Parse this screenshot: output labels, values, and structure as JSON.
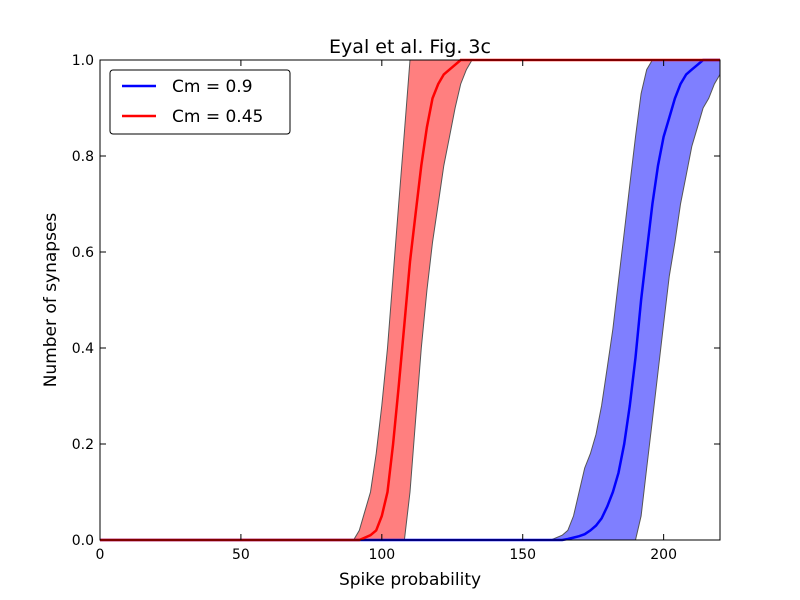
{
  "chart_data": {
    "type": "line",
    "title": "Eyal et al. Fig. 3c",
    "xlabel": "Spike probability",
    "ylabel": "Number of synapses",
    "xlim": [
      0,
      220
    ],
    "ylim": [
      0,
      1.0
    ],
    "xticks": [
      0,
      50,
      100,
      150,
      200
    ],
    "xtick_labels": [
      "0",
      "50",
      "100",
      "150",
      "200"
    ],
    "yticks": [
      0.0,
      0.2,
      0.4,
      0.6,
      0.8,
      1.0
    ],
    "ytick_labels": [
      "0.0",
      "0.2",
      "0.4",
      "0.6",
      "0.8",
      "1.0"
    ],
    "grid": false,
    "legend_position": "top-left",
    "series": [
      {
        "name": "Cm = 0.9",
        "color": "#0000ff",
        "band_color": "#7f7fff",
        "x": [
          0,
          160,
          164,
          166,
          168,
          170,
          172,
          174,
          176,
          178,
          180,
          182,
          184,
          186,
          188,
          190,
          192,
          194,
          196,
          198,
          200,
          202,
          204,
          206,
          208,
          210,
          212,
          214,
          216,
          218,
          220
        ],
        "mean": [
          0,
          0,
          0,
          0.002,
          0.005,
          0.008,
          0.012,
          0.02,
          0.03,
          0.045,
          0.07,
          0.1,
          0.14,
          0.2,
          0.28,
          0.38,
          0.5,
          0.6,
          0.7,
          0.78,
          0.84,
          0.88,
          0.92,
          0.95,
          0.97,
          0.98,
          0.99,
          1.0,
          1.0,
          1.0,
          1.0
        ],
        "lower": [
          0,
          0,
          0,
          0,
          0,
          0,
          0,
          0,
          0,
          0,
          0,
          0,
          0,
          0,
          0,
          0,
          0.05,
          0.15,
          0.25,
          0.35,
          0.45,
          0.55,
          0.62,
          0.7,
          0.76,
          0.82,
          0.86,
          0.9,
          0.92,
          0.95,
          0.97
        ],
        "upper": [
          0,
          0,
          0.01,
          0.02,
          0.05,
          0.1,
          0.15,
          0.18,
          0.22,
          0.28,
          0.36,
          0.44,
          0.54,
          0.64,
          0.74,
          0.84,
          0.93,
          0.98,
          1.0,
          1.0,
          1.0,
          1.0,
          1.0,
          1.0,
          1.0,
          1.0,
          1.0,
          1.0,
          1.0,
          1.0,
          1.0
        ]
      },
      {
        "name": "Cm = 0.45",
        "color": "#ff0000",
        "band_color": "#ff7f7f",
        "x": [
          0,
          90,
          92,
          94,
          96,
          98,
          100,
          102,
          104,
          106,
          108,
          110,
          112,
          114,
          116,
          118,
          120,
          122,
          124,
          126,
          128,
          130,
          132,
          220
        ],
        "mean": [
          0,
          0,
          0,
          0.005,
          0.01,
          0.02,
          0.05,
          0.1,
          0.2,
          0.32,
          0.45,
          0.58,
          0.68,
          0.78,
          0.86,
          0.92,
          0.95,
          0.97,
          0.98,
          0.99,
          1.0,
          1.0,
          1.0,
          1.0
        ],
        "lower": [
          0,
          0,
          0,
          0,
          0,
          0,
          0,
          0,
          0,
          0,
          0,
          0.1,
          0.25,
          0.4,
          0.52,
          0.62,
          0.7,
          0.78,
          0.84,
          0.9,
          0.95,
          0.98,
          1.0,
          1.0
        ],
        "upper": [
          0,
          0,
          0.02,
          0.06,
          0.1,
          0.18,
          0.28,
          0.4,
          0.55,
          0.7,
          0.85,
          1.0,
          1.0,
          1.0,
          1.0,
          1.0,
          1.0,
          1.0,
          1.0,
          1.0,
          1.0,
          1.0,
          1.0,
          1.0
        ]
      }
    ]
  }
}
